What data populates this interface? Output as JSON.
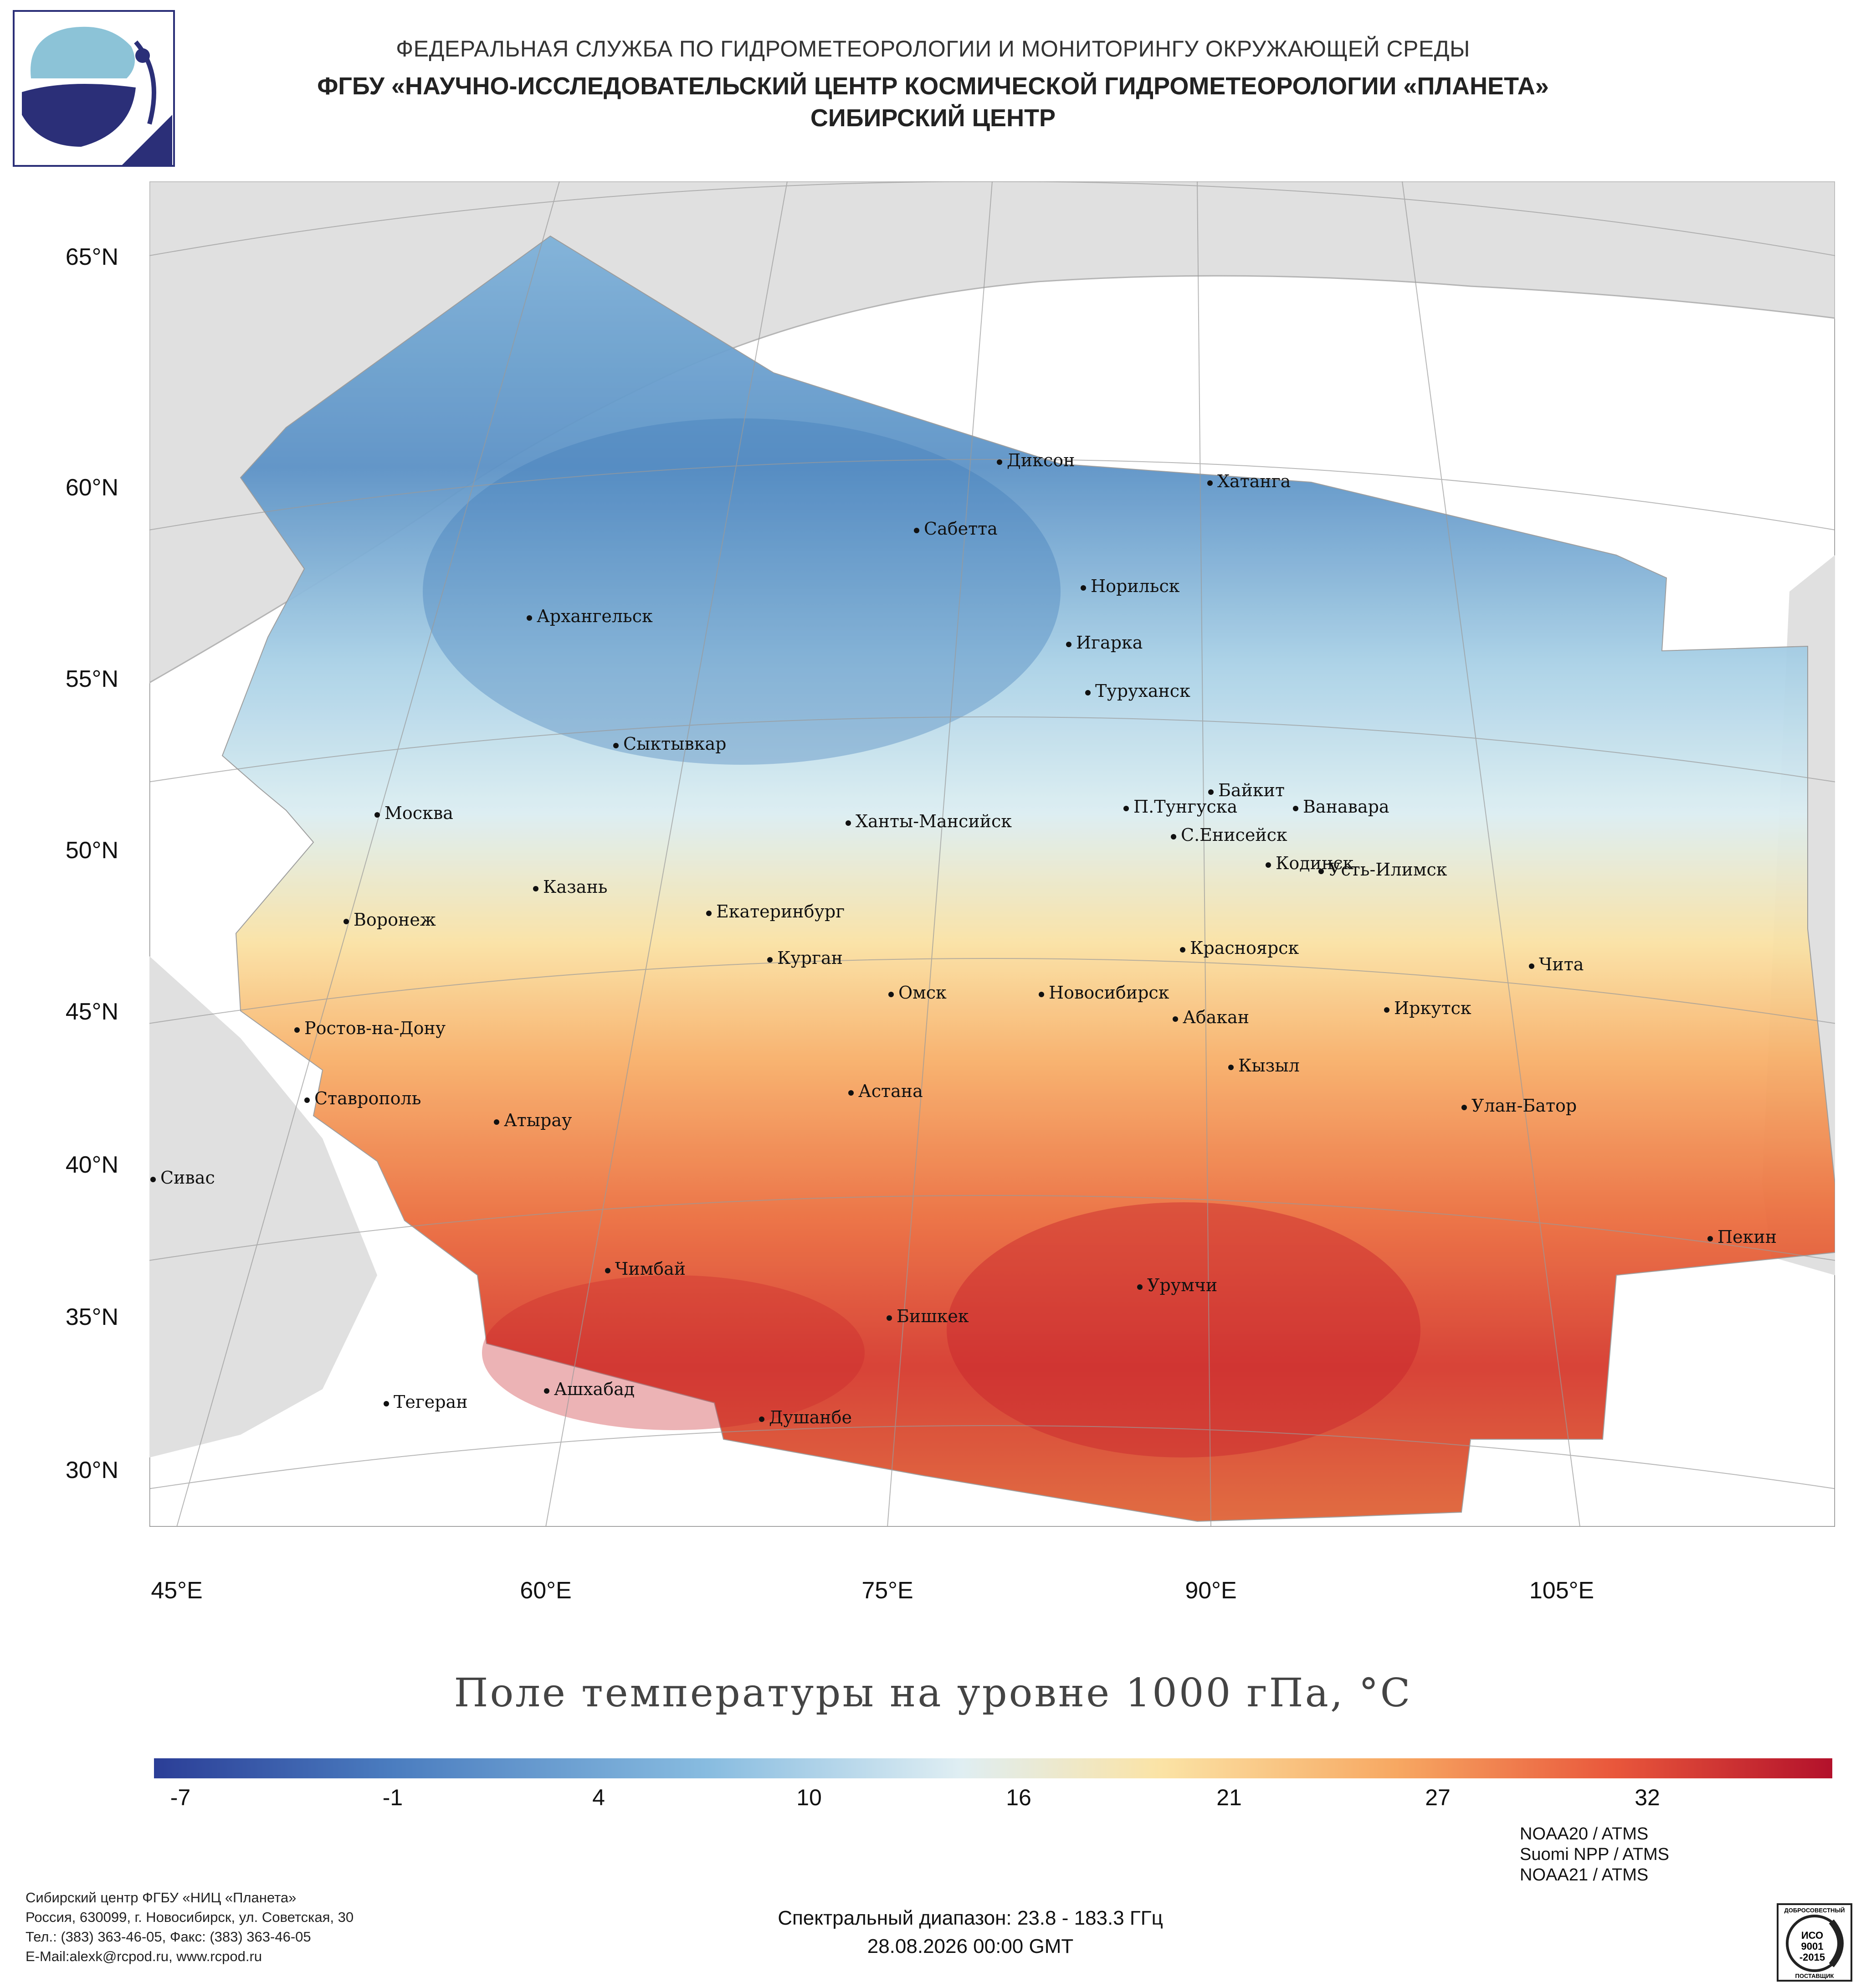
{
  "header": {
    "line1": "ФЕДЕРАЛЬНАЯ СЛУЖБА ПО ГИДРОМЕТЕОРОЛОГИИ И МОНИТОРИНГУ ОКРУЖАЮЩЕЙ СРЕДЫ",
    "line2": "ФГБУ «НАУЧНО-ИССЛЕДОВАТЕЛЬСКИЙ ЦЕНТР КОСМИЧЕСКОЙ ГИДРОМЕТЕОРОЛОГИИ «ПЛАНЕТА»",
    "line3": "СИБИРСКИЙ ЦЕНТР"
  },
  "map": {
    "lat_labels": [
      "65°N",
      "60°N",
      "55°N",
      "50°N",
      "45°N",
      "40°N",
      "35°N",
      "30°N"
    ],
    "lon_labels": [
      "45°E",
      "60°E",
      "75°E",
      "90°E",
      "105°E"
    ],
    "cities": [
      "Диксон",
      "Хатанга",
      "Сабетта",
      "Норильск",
      "Архангельск",
      "Игарка",
      "Туруханск",
      "Сыктывкар",
      "Байкит",
      "Москва",
      "П.Тунгуска",
      "Ванавара",
      "Ханты-Мансийск",
      "С.Енисейск",
      "Кодинск",
      "Усть-Илимск",
      "Казань",
      "Екатеринбург",
      "Воронеж",
      "Красноярск",
      "Курган",
      "Чита",
      "Омск",
      "Новосибирск",
      "Иркутск",
      "Абакан",
      "Ростов-на-Дону",
      "Кызыл",
      "Астана",
      "Ставрополь",
      "Улан-Батор",
      "Атырау",
      "Сивас",
      "Пекин",
      "Чимбай",
      "Урумчи",
      "Бишкек",
      "Ашхабад",
      "Тегеран",
      "Душанбе"
    ],
    "colors": {
      "land": "#e0e0e0",
      "ocean": "#ffffff",
      "border": "#b5b5b5"
    }
  },
  "title": "Поле температуры на уровне 1000 гПа, °С",
  "colorbar": {
    "ticks": [
      "-7",
      "-1",
      "4",
      "10",
      "16",
      "21",
      "27",
      "32"
    ],
    "colors": [
      "#2b3e97",
      "#4a7cbf",
      "#88bce0",
      "#dfeef3",
      "#fbe3a5",
      "#f7a862",
      "#e9573b",
      "#b3112b"
    ]
  },
  "footer": {
    "left": [
      "Сибирский центр ФГБУ «НИЦ «Планета»",
      "Россия, 630099, г. Новосибирск, ул. Советская, 30",
      "Тел.: (383) 363-46-05, Факс: (383) 363-46-05",
      "E-Mail:alexk@rcpod.ru, www.rcpod.ru"
    ],
    "center": [
      "Спектральный диапазон: 23.8 - 183.3 ГГц",
      "28.08.2026 00:00 GMT"
    ],
    "right": [
      "NOAA20 / ATMS",
      "Suomi NPP / ATMS",
      "NOAA21 / ATMS"
    ],
    "iso": {
      "top": "ДОБРОСОВЕСТНЫЙ",
      "mid1": "ИСО",
      "mid2": "9001",
      "mid3": "-2015",
      "bottom": "ПОСТАВЩИК"
    }
  }
}
